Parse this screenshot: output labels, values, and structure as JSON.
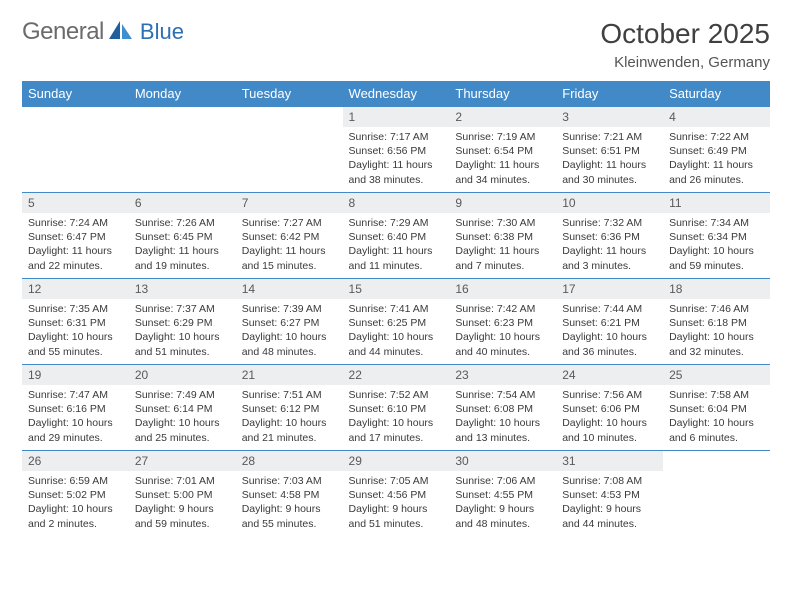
{
  "brand": {
    "text1": "General",
    "text2": "Blue"
  },
  "header": {
    "title": "October 2025",
    "location": "Kleinwenden, Germany"
  },
  "style": {
    "header_bg": "#4289c8",
    "header_fg": "#ffffff",
    "daynum_bg": "#eceeef",
    "border_color": "#4289c8",
    "body_bg": "#ffffff",
    "text_color": "#333333",
    "title_fontsize": 28,
    "location_fontsize": 15,
    "dayhead_fontsize": 13,
    "daynum_fontsize": 12,
    "celltext_fontsize": 10.5
  },
  "day_headers": [
    "Sunday",
    "Monday",
    "Tuesday",
    "Wednesday",
    "Thursday",
    "Friday",
    "Saturday"
  ],
  "weeks": [
    [
      {
        "empty": true
      },
      {
        "empty": true
      },
      {
        "empty": true
      },
      {
        "n": "1",
        "sr": "7:17 AM",
        "ss": "6:56 PM",
        "dlh": 11,
        "dlm": 38
      },
      {
        "n": "2",
        "sr": "7:19 AM",
        "ss": "6:54 PM",
        "dlh": 11,
        "dlm": 34
      },
      {
        "n": "3",
        "sr": "7:21 AM",
        "ss": "6:51 PM",
        "dlh": 11,
        "dlm": 30
      },
      {
        "n": "4",
        "sr": "7:22 AM",
        "ss": "6:49 PM",
        "dlh": 11,
        "dlm": 26
      }
    ],
    [
      {
        "n": "5",
        "sr": "7:24 AM",
        "ss": "6:47 PM",
        "dlh": 11,
        "dlm": 22
      },
      {
        "n": "6",
        "sr": "7:26 AM",
        "ss": "6:45 PM",
        "dlh": 11,
        "dlm": 19
      },
      {
        "n": "7",
        "sr": "7:27 AM",
        "ss": "6:42 PM",
        "dlh": 11,
        "dlm": 15
      },
      {
        "n": "8",
        "sr": "7:29 AM",
        "ss": "6:40 PM",
        "dlh": 11,
        "dlm": 11
      },
      {
        "n": "9",
        "sr": "7:30 AM",
        "ss": "6:38 PM",
        "dlh": 11,
        "dlm": 7
      },
      {
        "n": "10",
        "sr": "7:32 AM",
        "ss": "6:36 PM",
        "dlh": 11,
        "dlm": 3
      },
      {
        "n": "11",
        "sr": "7:34 AM",
        "ss": "6:34 PM",
        "dlh": 10,
        "dlm": 59
      }
    ],
    [
      {
        "n": "12",
        "sr": "7:35 AM",
        "ss": "6:31 PM",
        "dlh": 10,
        "dlm": 55
      },
      {
        "n": "13",
        "sr": "7:37 AM",
        "ss": "6:29 PM",
        "dlh": 10,
        "dlm": 51
      },
      {
        "n": "14",
        "sr": "7:39 AM",
        "ss": "6:27 PM",
        "dlh": 10,
        "dlm": 48
      },
      {
        "n": "15",
        "sr": "7:41 AM",
        "ss": "6:25 PM",
        "dlh": 10,
        "dlm": 44
      },
      {
        "n": "16",
        "sr": "7:42 AM",
        "ss": "6:23 PM",
        "dlh": 10,
        "dlm": 40
      },
      {
        "n": "17",
        "sr": "7:44 AM",
        "ss": "6:21 PM",
        "dlh": 10,
        "dlm": 36
      },
      {
        "n": "18",
        "sr": "7:46 AM",
        "ss": "6:18 PM",
        "dlh": 10,
        "dlm": 32
      }
    ],
    [
      {
        "n": "19",
        "sr": "7:47 AM",
        "ss": "6:16 PM",
        "dlh": 10,
        "dlm": 29
      },
      {
        "n": "20",
        "sr": "7:49 AM",
        "ss": "6:14 PM",
        "dlh": 10,
        "dlm": 25
      },
      {
        "n": "21",
        "sr": "7:51 AM",
        "ss": "6:12 PM",
        "dlh": 10,
        "dlm": 21
      },
      {
        "n": "22",
        "sr": "7:52 AM",
        "ss": "6:10 PM",
        "dlh": 10,
        "dlm": 17
      },
      {
        "n": "23",
        "sr": "7:54 AM",
        "ss": "6:08 PM",
        "dlh": 10,
        "dlm": 13
      },
      {
        "n": "24",
        "sr": "7:56 AM",
        "ss": "6:06 PM",
        "dlh": 10,
        "dlm": 10
      },
      {
        "n": "25",
        "sr": "7:58 AM",
        "ss": "6:04 PM",
        "dlh": 10,
        "dlm": 6
      }
    ],
    [
      {
        "n": "26",
        "sr": "6:59 AM",
        "ss": "5:02 PM",
        "dlh": 10,
        "dlm": 2
      },
      {
        "n": "27",
        "sr": "7:01 AM",
        "ss": "5:00 PM",
        "dlh": 9,
        "dlm": 59
      },
      {
        "n": "28",
        "sr": "7:03 AM",
        "ss": "4:58 PM",
        "dlh": 9,
        "dlm": 55
      },
      {
        "n": "29",
        "sr": "7:05 AM",
        "ss": "4:56 PM",
        "dlh": 9,
        "dlm": 51
      },
      {
        "n": "30",
        "sr": "7:06 AM",
        "ss": "4:55 PM",
        "dlh": 9,
        "dlm": 48
      },
      {
        "n": "31",
        "sr": "7:08 AM",
        "ss": "4:53 PM",
        "dlh": 9,
        "dlm": 44
      },
      {
        "empty": true
      }
    ]
  ]
}
